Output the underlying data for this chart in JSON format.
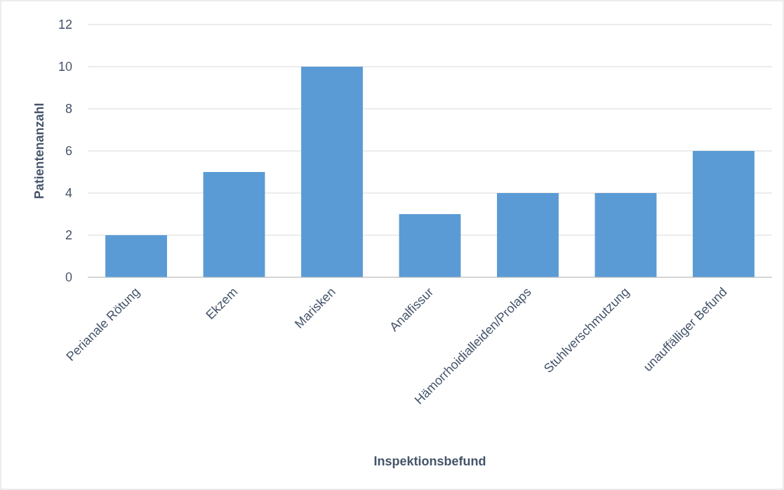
{
  "chart_data": {
    "type": "bar",
    "xlabel": "Inspektionsbefund",
    "ylabel": "Patientenanzahl",
    "categories": [
      "Perianale Rötung",
      "Ekzem",
      "Marisken",
      "Analfissur",
      "Hämorrhoidialleiden/Prolaps",
      "Stuhlverschmutzung",
      "unauffälliger Befund"
    ],
    "values": [
      2,
      5,
      10,
      3,
      4,
      4,
      6
    ],
    "color": "#5b9bd5",
    "ylim": [
      0,
      12
    ],
    "yticks": [
      0,
      2,
      4,
      6,
      8,
      10,
      12
    ],
    "grid": "y"
  }
}
